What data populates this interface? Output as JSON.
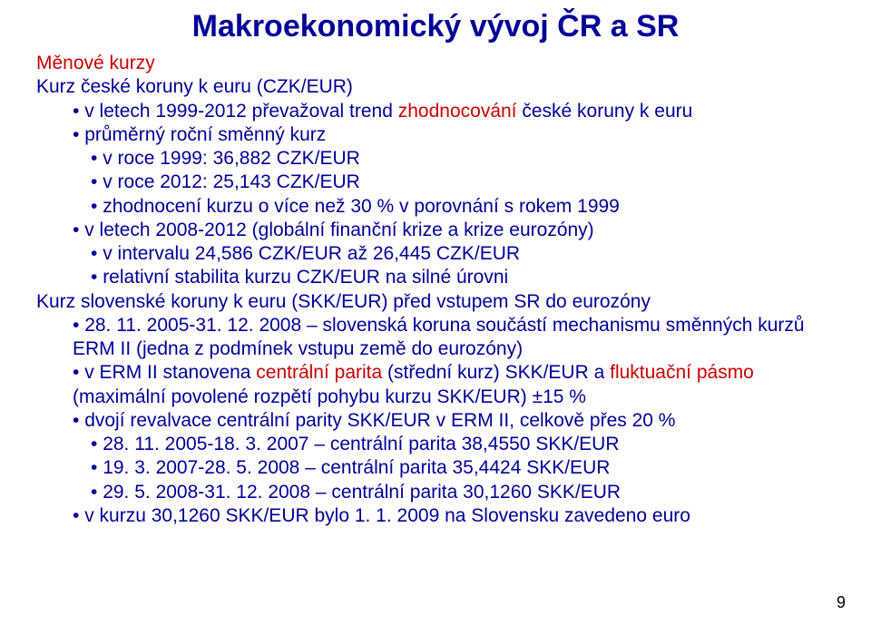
{
  "title": "Makroekonomický vývoj ČR a SR",
  "page_number": "9",
  "colors": {
    "title": "#000099",
    "body": "#000099",
    "highlight": "#cc0000",
    "background": "#ffffff",
    "pagenum": "#000000"
  },
  "typography": {
    "title_fontsize_pt": 26,
    "body_fontsize_pt": 16,
    "font_family": "Arial"
  },
  "t": {
    "menove_kurzy": "Měnové kurzy",
    "czk_heading": "Kurz české koruny k euru (CZK/EUR)",
    "czk_b1": "v letech 1999-2012 převažoval trend ",
    "czk_b1_red": "zhodnocování",
    "czk_b1_end": " české koruny k euru",
    "czk_b2": "průměrný roční směnný kurz",
    "czk_b2_s1": "v roce 1999: 36,882 CZK/EUR",
    "czk_b2_s2": "v roce 2012: 25,143 CZK/EUR",
    "czk_b2_s3": "zhodnocení kurzu o více než 30 % v porovnání s rokem 1999",
    "czk_b3a": "v letech 2008-2012 (globální finanční krize a krize eurozóny)",
    "czk_b3_s1": "v intervalu 24,586 CZK/EUR až 26,445 CZK/EUR",
    "czk_b3_s2": "relativní stabilita kurzu CZK/EUR na silné úrovni",
    "skk_heading": "Kurz slovenské koruny k euru (SKK/EUR) před vstupem SR do eurozóny",
    "skk_b1": "28. 11. 2005-31. 12. 2008 – slovenská koruna součástí mechanismu směnných kurzů ERM II (jedna z podmínek vstupu země do eurozóny)",
    "skk_b2a": "v ERM II stanovena ",
    "skk_b2_red": "centrální parita",
    "skk_b2b": " (střední kurz) SKK/EUR a ",
    "skk_b2_red2": "fluktuační pásmo",
    "skk_b2c": " (maximální povolené rozpětí pohybu kurzu SKK/EUR) ±15 %",
    "skk_b3": "dvojí revalvace centrální parity SKK/EUR v ERM II, celkově přes 20 %",
    "skk_b3_s1": "28. 11. 2005-18. 3. 2007 – centrální parita 38,4550 SKK/EUR",
    "skk_b3_s2": "19. 3. 2007-28. 5. 2008 – centrální parita 35,4424 SKK/EUR",
    "skk_b3_s3": "29. 5. 2008-31. 12. 2008 – centrální parita 30,1260 SKK/EUR",
    "skk_b4": "v kurzu 30,1260 SKK/EUR bylo 1. 1. 2009 na Slovensku zavedeno euro"
  }
}
